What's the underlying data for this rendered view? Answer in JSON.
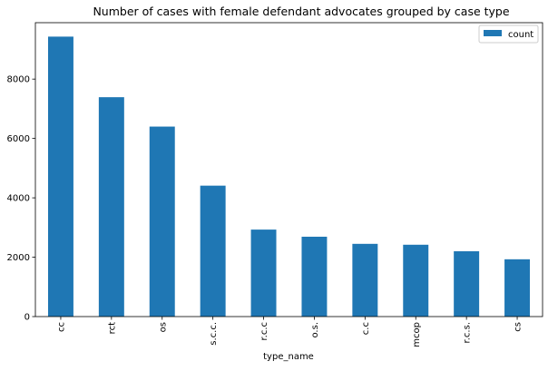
{
  "chart_data": {
    "type": "bar",
    "title": "Number of cases with female defendant advocates grouped by case type",
    "xlabel": "type_name",
    "ylabel": "",
    "categories": [
      "cc",
      "rct",
      "os",
      "s.c.c.",
      "r.c.c",
      "o.s.",
      "c.c",
      "mcop",
      "r.c.s.",
      "cs"
    ],
    "series": [
      {
        "name": "count",
        "color": "#1f77b4",
        "values": [
          9430,
          7390,
          6400,
          4410,
          2930,
          2690,
          2450,
          2420,
          2200,
          1930
        ]
      }
    ],
    "ylim": [
      0,
      9900
    ],
    "yticks": [
      0,
      2000,
      4000,
      6000,
      8000
    ],
    "ytick_labels": [
      "0",
      "2000",
      "4000",
      "6000",
      "8000"
    ],
    "grid": false,
    "legend": {
      "position": "top-right",
      "entries": [
        "count"
      ]
    },
    "x_tick_rotation": "vertical"
  }
}
